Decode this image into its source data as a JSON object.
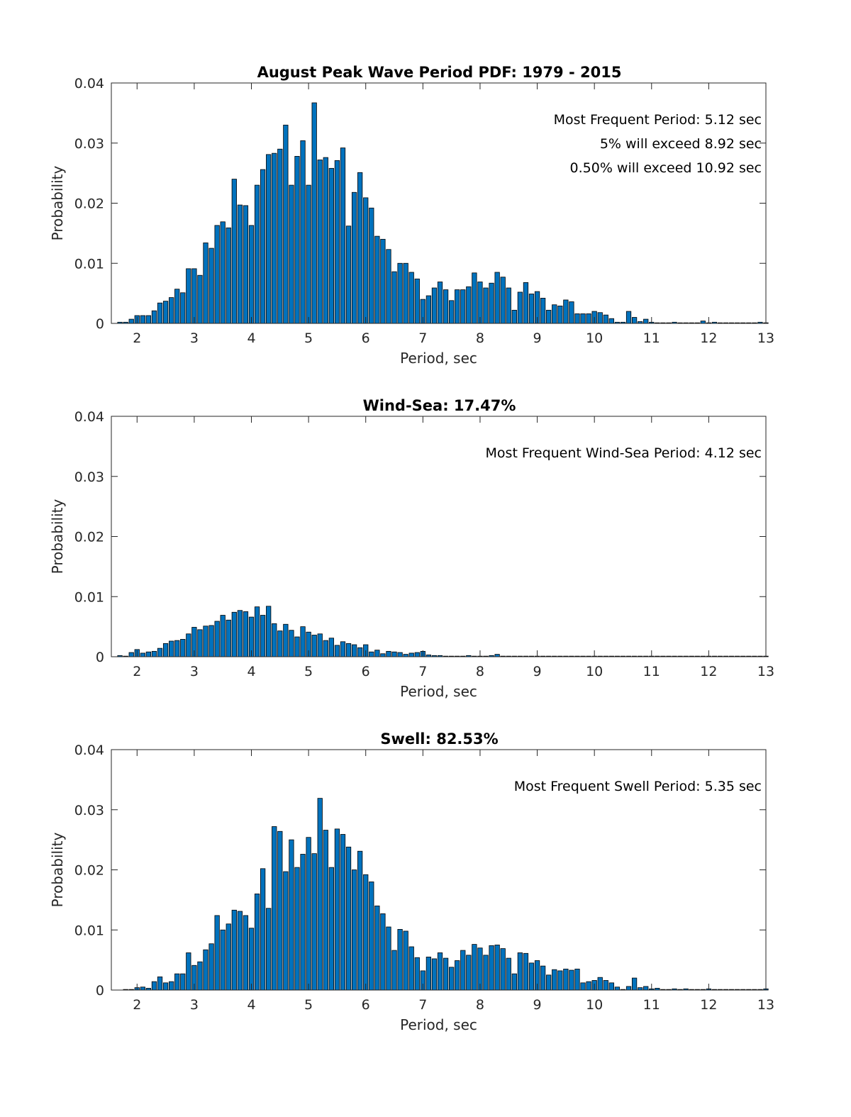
{
  "chart_data": [
    {
      "type": "bar",
      "title": "August Peak Wave Period PDF: 1979 - 2015",
      "xlabel": "Period, sec",
      "ylabel": "Probability",
      "xlim": [
        1.55,
        13.0
      ],
      "ylim": [
        0,
        0.04
      ],
      "xticks": [
        "2",
        "3",
        "4",
        "5",
        "6",
        "7",
        "8",
        "9",
        "10",
        "11",
        "12",
        "13"
      ],
      "yticks": [
        "0",
        "0.01",
        "0.02",
        "0.03",
        "0.04"
      ],
      "annotations": [
        "Most Frequent Period: 5.12 sec",
        "5% will exceed 8.92 sec",
        "0.50% will exceed 10.92 sec"
      ],
      "x0": 1.7,
      "dx": 0.1,
      "values": [
        0.0002,
        0.0002,
        0.0007,
        0.0013,
        0.0013,
        0.0013,
        0.0021,
        0.0034,
        0.0037,
        0.0043,
        0.0057,
        0.0051,
        0.0091,
        0.0091,
        0.008,
        0.0134,
        0.0125,
        0.0163,
        0.0169,
        0.0159,
        0.024,
        0.0197,
        0.0196,
        0.0163,
        0.023,
        0.0256,
        0.0281,
        0.0283,
        0.029,
        0.033,
        0.023,
        0.0278,
        0.0304,
        0.023,
        0.0367,
        0.0272,
        0.0276,
        0.0258,
        0.0271,
        0.0292,
        0.0162,
        0.0218,
        0.0251,
        0.0209,
        0.0192,
        0.0145,
        0.014,
        0.0123,
        0.0086,
        0.01,
        0.01,
        0.0085,
        0.0074,
        0.004,
        0.0046,
        0.0059,
        0.0069,
        0.0056,
        0.0038,
        0.0056,
        0.0056,
        0.0061,
        0.0084,
        0.0069,
        0.0059,
        0.0067,
        0.0085,
        0.0077,
        0.0059,
        0.0022,
        0.0052,
        0.0068,
        0.0049,
        0.0053,
        0.0042,
        0.0022,
        0.0031,
        0.0029,
        0.0039,
        0.0036,
        0.0016,
        0.0016,
        0.0016,
        0.002,
        0.0018,
        0.0014,
        0.0008,
        0.0002,
        0.0002,
        0.002,
        0.001,
        0.0003,
        0.0007,
        0.0002,
        0.0001,
        0.0001,
        0.0001,
        0.0002,
        0.0001,
        0.0001,
        0.0001,
        0.0001,
        0.0004,
        0.0001,
        0.0002,
        0.0001,
        0.0001,
        0.0001,
        0.0001,
        0.0001,
        0.0001,
        0.0001,
        0.0002,
        0.0001
      ]
    },
    {
      "type": "bar",
      "title": "Wind-Sea: 17.47%",
      "xlabel": "Period, sec",
      "ylabel": "Probability",
      "xlim": [
        1.55,
        13.0
      ],
      "ylim": [
        0,
        0.04
      ],
      "xticks": [
        "2",
        "3",
        "4",
        "5",
        "6",
        "7",
        "8",
        "9",
        "10",
        "11",
        "12",
        "13"
      ],
      "yticks": [
        "0",
        "0.01",
        "0.02",
        "0.03",
        "0.04"
      ],
      "annotations": [
        "Most Frequent Wind-Sea Period: 4.12 sec"
      ],
      "x0": 1.7,
      "dx": 0.1,
      "values": [
        0.0002,
        0.0001,
        0.0007,
        0.0012,
        0.0006,
        0.0008,
        0.0009,
        0.0014,
        0.0022,
        0.0026,
        0.0027,
        0.0029,
        0.0038,
        0.0049,
        0.0045,
        0.0051,
        0.0052,
        0.0059,
        0.0069,
        0.0061,
        0.0074,
        0.0077,
        0.0075,
        0.0066,
        0.0083,
        0.0069,
        0.0084,
        0.0055,
        0.0043,
        0.0054,
        0.0044,
        0.0033,
        0.005,
        0.0041,
        0.0036,
        0.0038,
        0.0027,
        0.0031,
        0.0019,
        0.0025,
        0.0022,
        0.002,
        0.0015,
        0.002,
        0.0008,
        0.0011,
        0.0005,
        0.0009,
        0.0008,
        0.0007,
        0.0004,
        0.0006,
        0.0007,
        0.0009,
        0.0003,
        0.0002,
        0.0002,
        0.0001,
        0.0001,
        0.0001,
        0.0001,
        0.0002,
        0.0001,
        0.0001,
        0.0001,
        0.0002,
        0.0004,
        0.0001,
        0.0001,
        0.0001,
        0.0001,
        0.0001,
        0.0001,
        0.0001,
        0.0001,
        0.0001,
        0.0001,
        0.0001,
        0.0001,
        0.0001,
        0.0001,
        0.0001,
        0.0001,
        0.0001,
        0.0001,
        0.0001,
        0.0001,
        0.0001,
        0.0001,
        0.0001,
        0.0001,
        0.0001,
        0.0001,
        0.0001,
        0.0001,
        0.0001,
        0.0001,
        0.0001,
        0.0001,
        0.0001,
        0.0001,
        0.0001,
        0.0001,
        0.0001,
        0.0001,
        0.0001,
        0.0001,
        0.0001,
        0.0001,
        0.0001,
        0.0001,
        0.0001,
        0.0001,
        0.0001
      ]
    },
    {
      "type": "bar",
      "title": "Swell: 82.53%",
      "xlabel": "Period, sec",
      "ylabel": "Probability",
      "xlim": [
        1.55,
        13.0
      ],
      "ylim": [
        0,
        0.04
      ],
      "xticks": [
        "2",
        "3",
        "4",
        "5",
        "6",
        "7",
        "8",
        "9",
        "10",
        "11",
        "12",
        "13"
      ],
      "yticks": [
        "0",
        "0.01",
        "0.02",
        "0.03",
        "0.04"
      ],
      "annotations": [
        "Most Frequent Swell Period: 5.35 sec"
      ],
      "x0": 1.8,
      "dx": 0.1,
      "values": [
        0.0001,
        0.0001,
        0.0004,
        0.0005,
        0.0003,
        0.0014,
        0.0022,
        0.0012,
        0.0014,
        0.0027,
        0.0027,
        0.0062,
        0.0041,
        0.0047,
        0.0067,
        0.0077,
        0.0124,
        0.01,
        0.011,
        0.0133,
        0.0131,
        0.0124,
        0.0103,
        0.016,
        0.0202,
        0.0136,
        0.0272,
        0.0264,
        0.0197,
        0.025,
        0.0204,
        0.0226,
        0.0254,
        0.0227,
        0.0319,
        0.0266,
        0.0204,
        0.0268,
        0.0259,
        0.0238,
        0.02,
        0.0231,
        0.0192,
        0.018,
        0.014,
        0.0127,
        0.0105,
        0.0066,
        0.0101,
        0.0098,
        0.0072,
        0.0054,
        0.0032,
        0.0055,
        0.0052,
        0.0062,
        0.0053,
        0.0038,
        0.0049,
        0.0066,
        0.0058,
        0.0076,
        0.007,
        0.0058,
        0.0074,
        0.0075,
        0.0069,
        0.0053,
        0.0027,
        0.0062,
        0.0061,
        0.0045,
        0.0049,
        0.004,
        0.0025,
        0.0034,
        0.0032,
        0.0035,
        0.0033,
        0.0035,
        0.0012,
        0.0014,
        0.0016,
        0.0021,
        0.0016,
        0.0012,
        0.0005,
        0.0001,
        0.0006,
        0.002,
        0.0004,
        0.0006,
        0.0002,
        0.0003,
        0.0001,
        0.0001,
        0.0002,
        0.0001,
        0.0002,
        0.0001,
        0.0001,
        0.0001,
        0.0002,
        0.0001,
        0.0001,
        0.0001,
        0.0001,
        0.0001,
        0.0001,
        0.0001,
        0.0001,
        0.0001,
        0.0002
      ]
    }
  ]
}
